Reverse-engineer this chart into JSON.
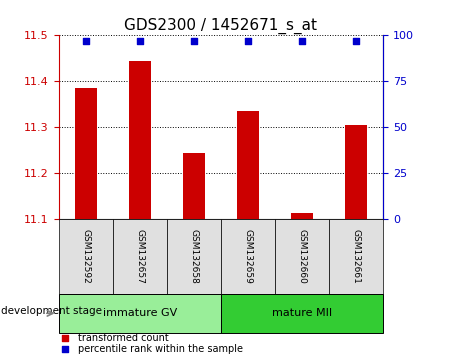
{
  "title": "GDS2300 / 1452671_s_at",
  "samples": [
    "GSM132592",
    "GSM132657",
    "GSM132658",
    "GSM132659",
    "GSM132660",
    "GSM132661"
  ],
  "bar_values": [
    11.385,
    11.445,
    11.245,
    11.335,
    11.115,
    11.305
  ],
  "bar_baseline": 11.1,
  "percentile_values": [
    97,
    97,
    97,
    97,
    97,
    97
  ],
  "bar_color": "#cc0000",
  "percentile_color": "#0000cc",
  "ylim_left": [
    11.1,
    11.5
  ],
  "ylim_right": [
    0,
    100
  ],
  "yticks_left": [
    11.1,
    11.2,
    11.3,
    11.4,
    11.5
  ],
  "yticks_right": [
    0,
    25,
    50,
    75,
    100
  ],
  "groups": [
    {
      "label": "immature GV",
      "indices": [
        0,
        1,
        2
      ],
      "color": "#99ee99"
    },
    {
      "label": "mature MII",
      "indices": [
        3,
        4,
        5
      ],
      "color": "#33cc33"
    }
  ],
  "group_label": "development stage",
  "legend_items": [
    {
      "label": "transformed count",
      "color": "#cc0000"
    },
    {
      "label": "percentile rank within the sample",
      "color": "#0000cc"
    }
  ],
  "bg_color": "#e0e0e0",
  "plot_bg": "#ffffff",
  "title_fontsize": 11,
  "tick_fontsize": 8,
  "bar_width": 0.4
}
